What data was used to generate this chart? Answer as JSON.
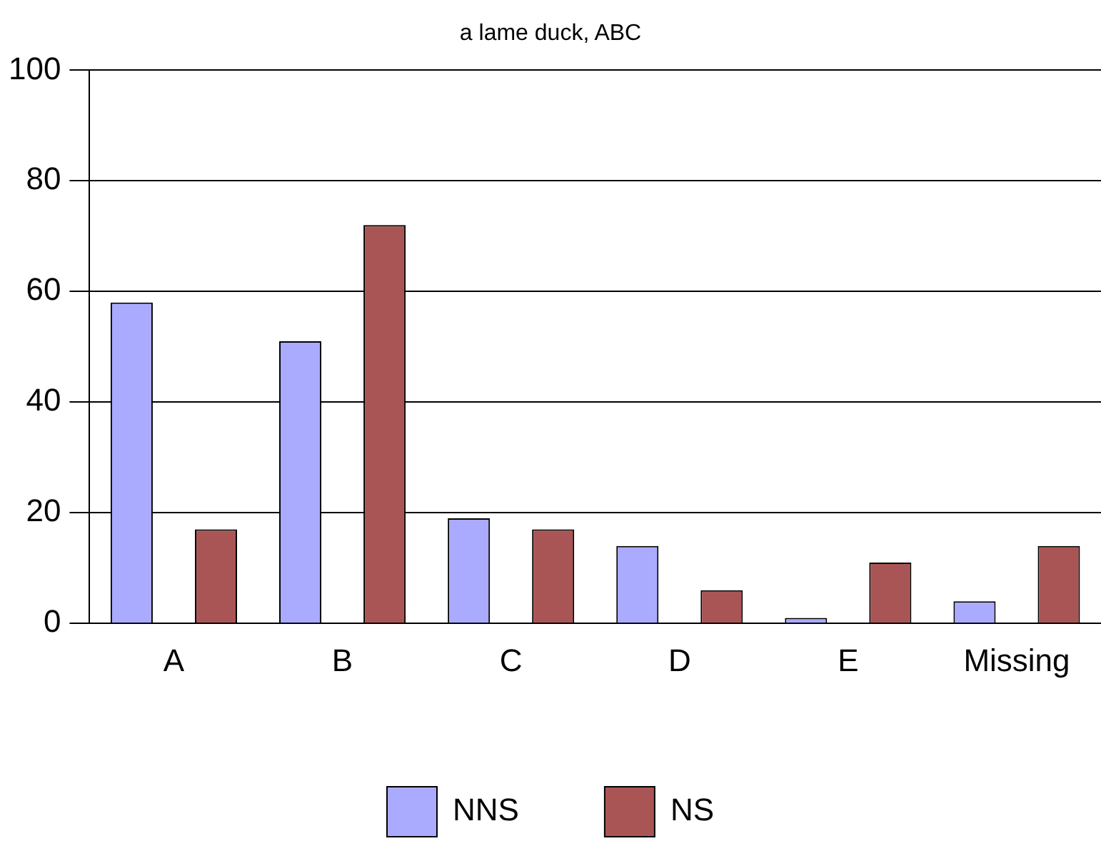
{
  "chart_data": {
    "type": "bar",
    "title": "a lame duck, ABC",
    "categories": [
      "A",
      "B",
      "C",
      "D",
      "E",
      "Missing"
    ],
    "series": [
      {
        "name": "NNS",
        "color": "#aaaaff",
        "values": [
          58,
          51,
          19,
          14,
          1,
          4
        ]
      },
      {
        "name": "NS",
        "color": "#aa5555",
        "values": [
          17,
          72,
          17,
          6,
          11,
          14
        ]
      }
    ],
    "ylim": [
      0,
      100
    ],
    "yticks": [
      0,
      20,
      40,
      60,
      80,
      100
    ],
    "grid": "y",
    "legend": "bottom"
  }
}
